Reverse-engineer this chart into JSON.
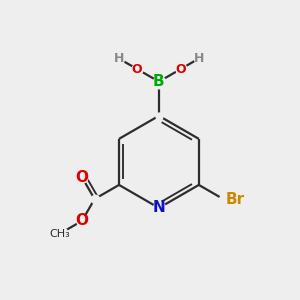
{
  "bg_color": "#eeeeee",
  "bond_color": "#2d2d2d",
  "bond_width": 1.6,
  "colors": {
    "B": "#00aa00",
    "N": "#1010cc",
    "Br": "#cc8800",
    "O": "#dd0000",
    "H": "#888888",
    "C": "#2d2d2d"
  },
  "font_size_atom": 11,
  "font_size_small": 9,
  "font_size_h": 9
}
